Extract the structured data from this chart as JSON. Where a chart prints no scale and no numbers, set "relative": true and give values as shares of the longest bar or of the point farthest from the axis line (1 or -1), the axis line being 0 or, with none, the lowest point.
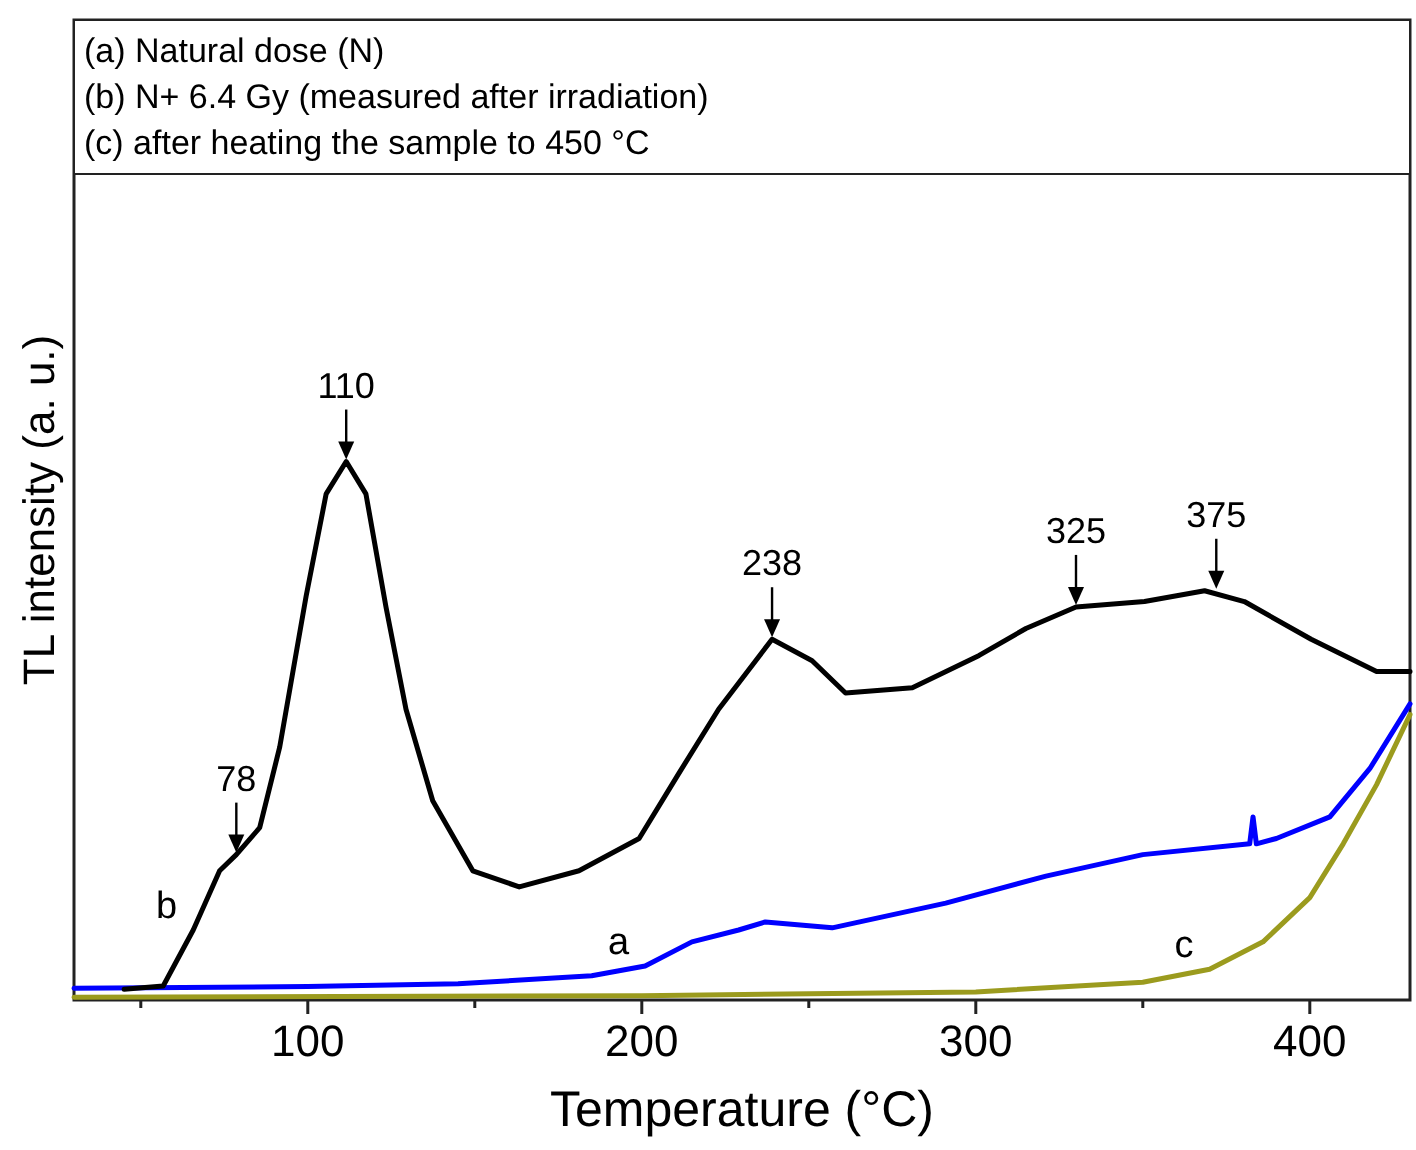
{
  "chart_data": {
    "type": "line",
    "relative": true,
    "xlabel": "Temperature (°C)",
    "ylabel": "TL intensity (a. u.)",
    "xlim": [
      30,
      430
    ],
    "xticks": [
      {
        "value": 50,
        "label": null
      },
      100,
      {
        "value": 150,
        "label": null
      },
      200,
      {
        "value": 250,
        "label": null
      },
      300,
      {
        "value": 350,
        "label": null
      },
      400
    ],
    "tick_labels": "x",
    "grid": false,
    "line_style": "solid",
    "series": [
      {
        "name": "a",
        "color": "#0000ff",
        "x": [
          30,
          100,
          145,
          185,
          201,
          215,
          229,
          237,
          257,
          291,
          321,
          350,
          382,
          383,
          384,
          390,
          406,
          418,
          430
        ],
        "values": [
          0.022,
          0.025,
          0.03,
          0.045,
          0.063,
          0.108,
          0.13,
          0.145,
          0.134,
          0.18,
          0.23,
          0.27,
          0.29,
          0.34,
          0.29,
          0.3,
          0.34,
          0.43,
          0.55
        ]
      },
      {
        "name": "b",
        "color": "#000000",
        "x": [
          45,
          56.7,
          65.7,
          73.6,
          78.6,
          85.6,
          91.6,
          99.5,
          105.5,
          111.5,
          117.4,
          123.4,
          129.4,
          137.4,
          149.4,
          163.3,
          181.2,
          199.2,
          211,
          223,
          239,
          251,
          261,
          281,
          301,
          315,
          330,
          350.5,
          368.5,
          380.4,
          400.4,
          420,
          430
        ],
        "values": [
          0.02,
          0.026,
          0.13,
          0.24,
          0.27,
          0.32,
          0.47,
          0.75,
          0.94,
          1.0,
          0.94,
          0.73,
          0.54,
          0.37,
          0.24,
          0.21,
          0.24,
          0.3,
          0.42,
          0.54,
          0.67,
          0.63,
          0.57,
          0.58,
          0.64,
          0.69,
          0.73,
          0.74,
          0.76,
          0.74,
          0.67,
          0.61,
          0.61
        ]
      },
      {
        "name": "c",
        "color": "#9b9b1e",
        "x": [
          30,
          200,
          300,
          350,
          370,
          386,
          400,
          410,
          420,
          430
        ],
        "values": [
          0.005,
          0.008,
          0.015,
          0.033,
          0.057,
          0.108,
          0.19,
          0.29,
          0.4,
          0.53
        ]
      }
    ],
    "annotations": [
      "(a) Natural dose (N)",
      "(b) N+ 6.4 Gy (measured after irradiation)",
      "(c) after heating the sample to 450 °C",
      {
        "text": "78",
        "x": 78.6,
        "y": 0.27
      },
      {
        "text": "110",
        "x": 111.5,
        "y": 1.0
      },
      {
        "text": "238",
        "x": 239,
        "y": 0.67
      },
      {
        "text": "325",
        "x": 330,
        "y": 0.73
      },
      {
        "text": "375",
        "x": 372,
        "y": 0.76
      }
    ]
  }
}
